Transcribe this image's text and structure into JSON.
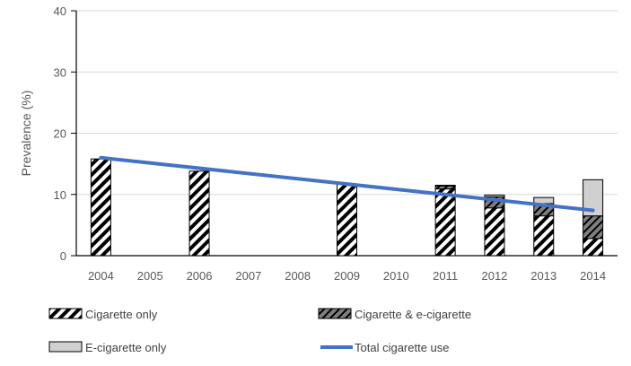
{
  "chart_data": {
    "type": "bar",
    "stacked": true,
    "categories": [
      "2004",
      "2005",
      "2006",
      "2007",
      "2008",
      "2009",
      "2010",
      "2011",
      "2012",
      "2013",
      "2014"
    ],
    "ylabel": "Prevalence (%)",
    "ylim": [
      0,
      40
    ],
    "yticks": [
      0,
      10,
      20,
      30,
      40
    ],
    "grid": true,
    "legend_placement": "bottom",
    "series": [
      {
        "name": "Cigarette only",
        "kind": "bar",
        "pattern": "hatch-light",
        "values": [
          15.8,
          null,
          13.8,
          null,
          null,
          11.7,
          null,
          10.9,
          7.8,
          6.5,
          2.8
        ]
      },
      {
        "name": "Cigarette & e-cigarette",
        "kind": "bar",
        "pattern": "hatch-dark",
        "values": [
          null,
          null,
          null,
          null,
          null,
          null,
          null,
          0.5,
          1.8,
          2.0,
          3.7
        ]
      },
      {
        "name": "E-cigarette only",
        "kind": "bar",
        "pattern": "solid-gray",
        "values": [
          null,
          null,
          null,
          null,
          null,
          null,
          null,
          0.1,
          0.3,
          1.0,
          5.9
        ]
      },
      {
        "name": "Total cigarette use",
        "kind": "line",
        "color": "#4472C4",
        "x": [
          "2004",
          "2014"
        ],
        "values": [
          16.0,
          7.4
        ]
      }
    ]
  },
  "colors": {
    "line": "#4472C4",
    "grid": "#d9d9d9",
    "axis": "#000000",
    "text": "#595959",
    "solid_gray": "#d0d0d0"
  }
}
